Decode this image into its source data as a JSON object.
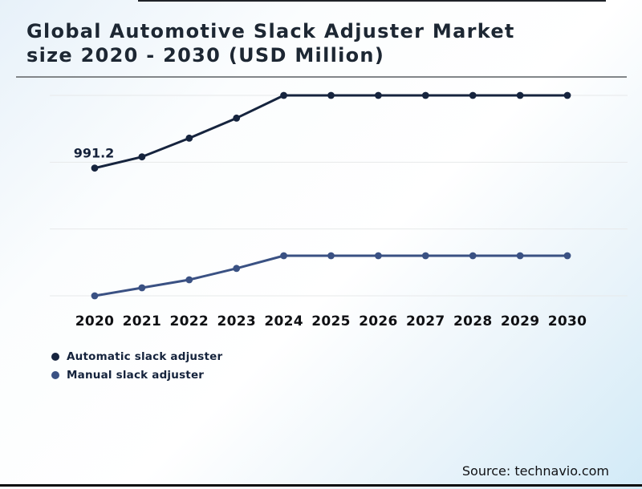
{
  "header": {
    "title_line1": "Global Automotive Slack Adjuster Market",
    "title_line2": "size 2020 - 2030 (USD Million)"
  },
  "source": {
    "label": "Source: technavio.com"
  },
  "legend": [
    {
      "label": "Automatic slack adjuster",
      "color": "#16243e"
    },
    {
      "label": "Manual slack adjuster",
      "color": "#3a5183"
    }
  ],
  "colors": {
    "title_text": "#1d2733",
    "gridline": "#e7e9ea",
    "axis_label": "#101114",
    "data_label": "#14213a",
    "background_corner_blue": "#d2eaf7"
  },
  "chart_data": {
    "type": "line",
    "title": "Global Automotive Slack Adjuster Market size 2020 - 2030 (USD Million)",
    "xlabel": "",
    "ylabel": "",
    "categories": [
      "2020",
      "2021",
      "2022",
      "2023",
      "2024",
      "2025",
      "2026",
      "2027",
      "2028",
      "2029",
      "2030"
    ],
    "series": [
      {
        "name": "Automatic slack adjuster",
        "color": "#16243e",
        "values": [
          991.2,
          1008,
          1036,
          1066,
          1100,
          1100,
          1100,
          1100,
          1100,
          1100,
          1100
        ]
      },
      {
        "name": "Manual slack adjuster",
        "color": "#3a5183",
        "values": [
          800,
          812,
          824,
          841,
          860,
          860,
          860,
          860,
          860,
          860,
          860
        ]
      }
    ],
    "data_labels": [
      {
        "series": 0,
        "index": 0,
        "text": "991.2"
      }
    ],
    "gridlines": [
      800,
      900,
      1000,
      1100
    ],
    "ylim": [
      760,
      1150
    ],
    "grid": "horizontal-faint",
    "y_axis_visible": false,
    "legend_position": "bottom-left"
  }
}
